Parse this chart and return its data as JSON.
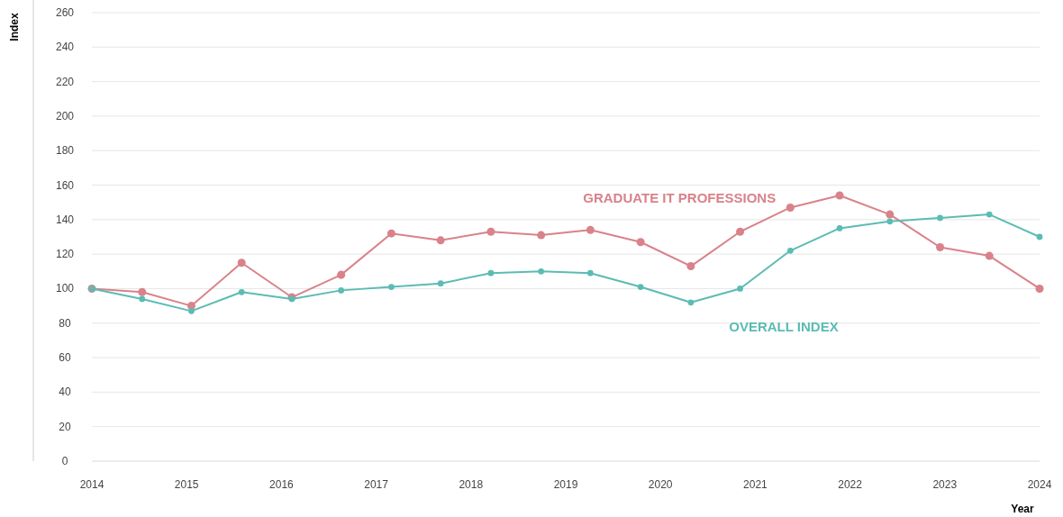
{
  "chart_data": {
    "type": "line",
    "xlabel": "Year",
    "ylabel": "Index",
    "x": [
      2014,
      2014.53,
      2015.05,
      2015.58,
      2016.11,
      2016.63,
      2017.16,
      2017.68,
      2018.21,
      2018.74,
      2019.26,
      2019.79,
      2020.32,
      2020.84,
      2021.37,
      2021.89,
      2022.42,
      2022.95,
      2023.47,
      2024
    ],
    "xlim": [
      2014,
      2024
    ],
    "xticks": [
      2014,
      2015,
      2016,
      2017,
      2018,
      2019,
      2020,
      2021,
      2022,
      2023,
      2024
    ],
    "ylim": [
      0,
      260
    ],
    "yticks": [
      0,
      20,
      40,
      60,
      80,
      100,
      120,
      140,
      160,
      180,
      200,
      220,
      240,
      260
    ],
    "series": [
      {
        "name": "GRADUATE IT PROFESSIONS",
        "color": "#d9828a",
        "values": [
          100,
          98,
          90,
          115,
          95,
          108,
          132,
          128,
          133,
          131,
          134,
          127,
          113,
          133,
          147,
          154,
          143,
          124,
          119,
          100
        ]
      },
      {
        "name": "OVERALL INDEX",
        "color": "#5bbcb3",
        "values": [
          100,
          94,
          87,
          98,
          94,
          99,
          101,
          103,
          109,
          110,
          109,
          101,
          92,
          100,
          122,
          135,
          139,
          141,
          143,
          130
        ]
      }
    ],
    "grid": "y",
    "marker": "circle",
    "line_style": "solid"
  }
}
